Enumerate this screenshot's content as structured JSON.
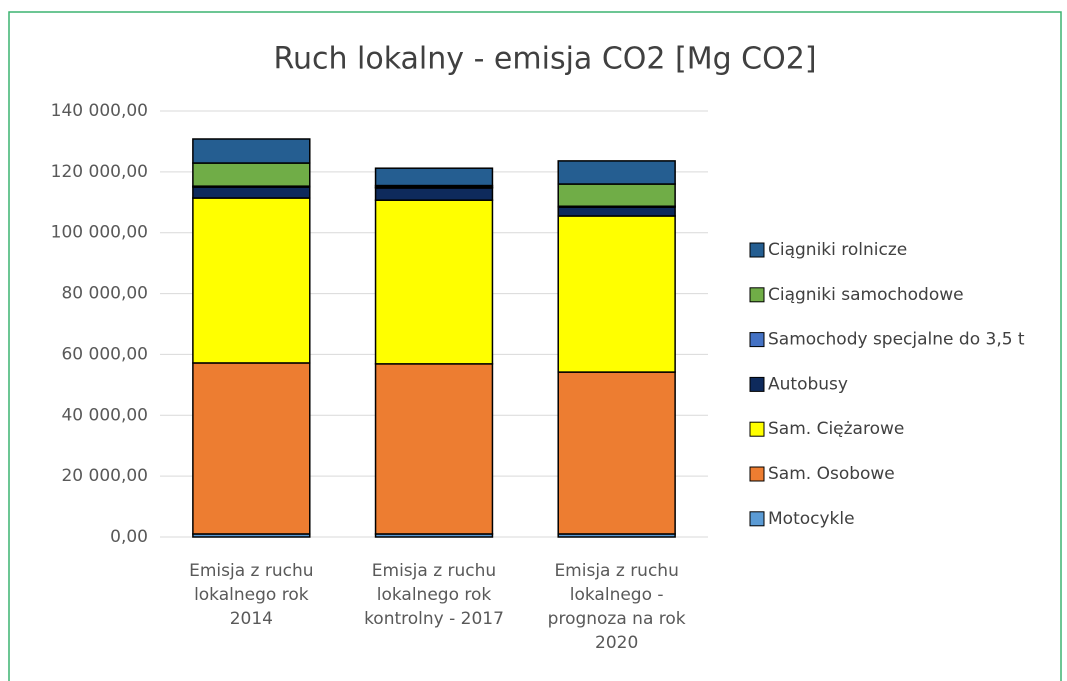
{
  "chart_data": {
    "type": "stacked_bar",
    "title": "Ruch lokalny - emisja CO2 [Mg CO2]",
    "categories": [
      "Emisja z ruchu lokalnego rok 2014",
      "Emisja z ruchu lokalnego rok kontrolny - 2017",
      "Emisja z ruchu lokalnego - prognoza na rok 2020"
    ],
    "series": [
      {
        "name": "Motocykle",
        "color": "#5b9bd5",
        "values": [
          1000,
          1000,
          1000
        ]
      },
      {
        "name": "Sam. Osobowe",
        "color": "#ed7d31",
        "values": [
          56200,
          55900,
          53200
        ]
      },
      {
        "name": "Sam. Ciężarowe",
        "color": "#ffff00",
        "values": [
          54200,
          53800,
          51300
        ]
      },
      {
        "name": "Autobusy",
        "color": "#0e2a5c",
        "values": [
          3600,
          4000,
          2900
        ]
      },
      {
        "name": "Samochody specjalne do 3,5 t",
        "color": "#4472c4",
        "values": [
          300,
          300,
          300
        ]
      },
      {
        "name": "Ciągniki samochodowe",
        "color": "#70ad47",
        "values": [
          7600,
          500,
          7300
        ]
      },
      {
        "name": "Ciągniki rolnicze",
        "color": "#255e91",
        "values": [
          7900,
          5700,
          7600
        ]
      }
    ],
    "ylim": [
      0,
      140000
    ],
    "yticks": [
      {
        "value": 0,
        "label": "0,00"
      },
      {
        "value": 20000,
        "label": "20 000,00"
      },
      {
        "value": 40000,
        "label": "40 000,00"
      },
      {
        "value": 60000,
        "label": "60 000,00"
      },
      {
        "value": 80000,
        "label": "80 000,00"
      },
      {
        "value": 100000,
        "label": "100 000,00"
      },
      {
        "value": 120000,
        "label": "120 000,00"
      },
      {
        "value": 140000,
        "label": "140 000,00"
      }
    ],
    "grid": true,
    "legend": "right"
  }
}
